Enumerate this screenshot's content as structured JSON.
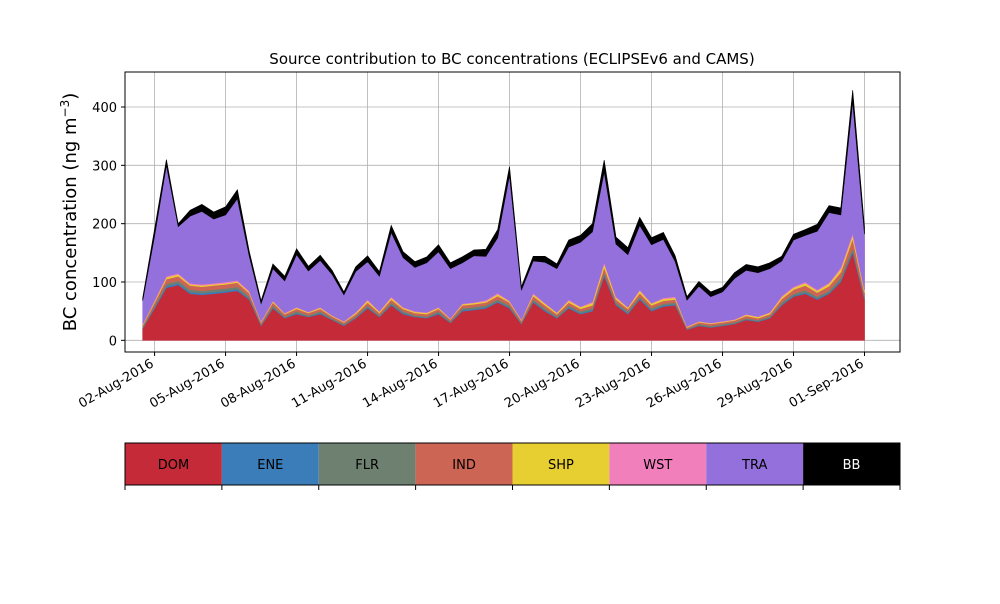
{
  "chart_data": {
    "type": "area",
    "stacked": true,
    "title": "Source contribution to BC concentrations (ECLIPSEv6 and CAMS)",
    "ylabel": "BC concentration (ng m",
    "ylabel_exponent": "−3",
    "ylabel_close": ")",
    "ylim": [
      -20,
      460
    ],
    "yticks": [
      0,
      100,
      200,
      300,
      400
    ],
    "xlim": [
      "2016-07-31T18:00",
      "2016-09-02T12:00"
    ],
    "xticks": [
      "2016-08-02",
      "2016-08-05",
      "2016-08-08",
      "2016-08-11",
      "2016-08-14",
      "2016-08-17",
      "2016-08-20",
      "2016-08-23",
      "2016-08-26",
      "2016-08-29",
      "2016-09-01"
    ],
    "xtick_labels": [
      "02-Aug-2016",
      "05-Aug-2016",
      "08-Aug-2016",
      "11-Aug-2016",
      "14-Aug-2016",
      "17-Aug-2016",
      "20-Aug-2016",
      "23-Aug-2016",
      "26-Aug-2016",
      "29-Aug-2016",
      "01-Sep-2016"
    ],
    "grid": true,
    "legend_placement": "bottom",
    "x": [
      "2016-08-01T12:00",
      "2016-08-02T00:00",
      "2016-08-02T12:00",
      "2016-08-03T00:00",
      "2016-08-03T12:00",
      "2016-08-04T00:00",
      "2016-08-04T12:00",
      "2016-08-05T00:00",
      "2016-08-05T12:00",
      "2016-08-06T00:00",
      "2016-08-06T12:00",
      "2016-08-07T00:00",
      "2016-08-07T12:00",
      "2016-08-08T00:00",
      "2016-08-08T12:00",
      "2016-08-09T00:00",
      "2016-08-09T12:00",
      "2016-08-10T00:00",
      "2016-08-10T12:00",
      "2016-08-11T00:00",
      "2016-08-11T12:00",
      "2016-08-12T00:00",
      "2016-08-12T12:00",
      "2016-08-13T00:00",
      "2016-08-13T12:00",
      "2016-08-14T00:00",
      "2016-08-14T12:00",
      "2016-08-15T00:00",
      "2016-08-15T12:00",
      "2016-08-16T00:00",
      "2016-08-16T12:00",
      "2016-08-17T00:00",
      "2016-08-17T12:00",
      "2016-08-18T00:00",
      "2016-08-18T12:00",
      "2016-08-19T00:00",
      "2016-08-19T12:00",
      "2016-08-20T00:00",
      "2016-08-20T12:00",
      "2016-08-21T00:00",
      "2016-08-21T12:00",
      "2016-08-22T00:00",
      "2016-08-22T12:00",
      "2016-08-23T00:00",
      "2016-08-23T12:00",
      "2016-08-24T00:00",
      "2016-08-24T12:00",
      "2016-08-25T00:00",
      "2016-08-25T12:00",
      "2016-08-26T00:00",
      "2016-08-26T12:00",
      "2016-08-27T00:00",
      "2016-08-27T12:00",
      "2016-08-28T00:00",
      "2016-08-28T12:00",
      "2016-08-29T00:00",
      "2016-08-29T12:00",
      "2016-08-30T00:00",
      "2016-08-30T12:00",
      "2016-08-31T00:00",
      "2016-08-31T12:00",
      "2016-09-01T00:00"
    ],
    "series": [
      {
        "name": "DOM",
        "color": "#c42a38",
        "values": [
          20,
          55,
          90,
          95,
          80,
          78,
          80,
          82,
          85,
          70,
          25,
          55,
          38,
          45,
          40,
          45,
          35,
          25,
          38,
          55,
          40,
          60,
          45,
          40,
          38,
          45,
          30,
          50,
          52,
          55,
          65,
          55,
          28,
          65,
          50,
          38,
          55,
          45,
          50,
          110,
          60,
          45,
          70,
          50,
          58,
          60,
          18,
          25,
          22,
          25,
          28,
          35,
          32,
          38,
          60,
          75,
          80,
          70,
          80,
          100,
          150,
          70
        ]
      },
      {
        "name": "ENE",
        "color": "#3a7db9",
        "values": [
          1,
          2,
          3,
          3,
          3,
          3,
          3,
          3,
          3,
          2,
          1,
          2,
          1,
          2,
          1,
          2,
          1,
          1,
          1,
          2,
          1,
          2,
          2,
          1,
          1,
          2,
          1,
          2,
          2,
          2,
          2,
          2,
          1,
          2,
          2,
          1,
          2,
          2,
          2,
          3,
          2,
          2,
          2,
          2,
          2,
          2,
          1,
          1,
          1,
          1,
          1,
          1,
          1,
          1,
          2,
          2,
          2,
          2,
          2,
          3,
          4,
          2
        ]
      },
      {
        "name": "FLR",
        "color": "#6e806f",
        "values": [
          2,
          3,
          4,
          4,
          4,
          4,
          4,
          4,
          4,
          3,
          2,
          3,
          2,
          3,
          2,
          3,
          2,
          2,
          2,
          3,
          2,
          3,
          3,
          2,
          2,
          3,
          2,
          3,
          3,
          3,
          3,
          3,
          2,
          3,
          3,
          2,
          3,
          3,
          3,
          4,
          3,
          3,
          3,
          3,
          3,
          3,
          1,
          2,
          2,
          2,
          2,
          2,
          2,
          2,
          3,
          3,
          4,
          3,
          3,
          4,
          5,
          3
        ]
      },
      {
        "name": "IND",
        "color": "#cd6554",
        "values": [
          3,
          5,
          8,
          8,
          7,
          7,
          7,
          7,
          7,
          6,
          3,
          5,
          4,
          4,
          4,
          4,
          3,
          3,
          4,
          5,
          4,
          5,
          4,
          4,
          4,
          4,
          3,
          5,
          5,
          5,
          6,
          5,
          3,
          6,
          5,
          4,
          5,
          4,
          5,
          8,
          5,
          4,
          6,
          5,
          5,
          5,
          2,
          3,
          3,
          3,
          3,
          4,
          3,
          4,
          6,
          7,
          8,
          7,
          8,
          10,
          15,
          7
        ]
      },
      {
        "name": "SHP",
        "color": "#e8cf31",
        "values": [
          1,
          2,
          3,
          3,
          2,
          2,
          2,
          2,
          2,
          2,
          1,
          2,
          1,
          2,
          1,
          2,
          1,
          1,
          2,
          3,
          2,
          3,
          2,
          2,
          2,
          2,
          1,
          2,
          2,
          2,
          3,
          2,
          1,
          3,
          3,
          2,
          3,
          3,
          4,
          6,
          3,
          2,
          4,
          3,
          3,
          3,
          1,
          1,
          1,
          1,
          1,
          2,
          2,
          2,
          3,
          3,
          4,
          3,
          4,
          5,
          6,
          3
        ]
      },
      {
        "name": "WST",
        "color": "#f07fbc",
        "values": [
          1,
          2,
          2,
          2,
          2,
          2,
          2,
          2,
          2,
          2,
          1,
          1,
          1,
          1,
          1,
          1,
          1,
          1,
          1,
          2,
          1,
          2,
          1,
          1,
          1,
          1,
          1,
          1,
          1,
          2,
          2,
          1,
          1,
          2,
          1,
          1,
          2,
          1,
          2,
          3,
          2,
          1,
          2,
          1,
          2,
          2,
          1,
          1,
          1,
          1,
          1,
          1,
          1,
          1,
          2,
          2,
          2,
          2,
          2,
          3,
          4,
          2
        ]
      },
      {
        "name": "TRA",
        "color": "#9370db",
        "values": [
          40,
          110,
          190,
          80,
          115,
          125,
          110,
          115,
          140,
          60,
          30,
          55,
          55,
          90,
          70,
          80,
          70,
          45,
          70,
          65,
          60,
          110,
          85,
          75,
          85,
          95,
          85,
          70,
          80,
          75,
          95,
          215,
          50,
          55,
          70,
          75,
          90,
          110,
          120,
          155,
          90,
          90,
          110,
          100,
          100,
          60,
          45,
          60,
          45,
          50,
          70,
          75,
          75,
          75,
          60,
          80,
          80,
          100,
          120,
          90,
          225,
          95
        ]
      },
      {
        "name": "BB",
        "color": "#000000",
        "values": [
          5,
          12,
          10,
          5,
          10,
          12,
          12,
          14,
          15,
          8,
          5,
          8,
          8,
          10,
          8,
          9,
          7,
          5,
          8,
          10,
          8,
          12,
          10,
          10,
          10,
          12,
          10,
          10,
          10,
          12,
          14,
          15,
          6,
          8,
          10,
          8,
          12,
          12,
          14,
          20,
          12,
          12,
          14,
          12,
          12,
          10,
          6,
          8,
          8,
          8,
          10,
          10,
          10,
          10,
          8,
          10,
          10,
          12,
          12,
          12,
          20,
          12
        ]
      }
    ]
  }
}
